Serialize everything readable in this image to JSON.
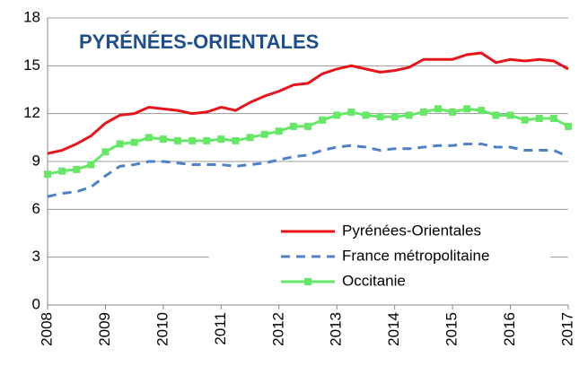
{
  "chart_data": {
    "type": "line",
    "title": "PYRÉNÉES-ORIENTALES",
    "x": [
      2008,
      2008.25,
      2008.5,
      2008.75,
      2009,
      2009.25,
      2009.5,
      2009.75,
      2010,
      2010.25,
      2010.5,
      2010.75,
      2011,
      2011.25,
      2011.5,
      2011.75,
      2012,
      2012.25,
      2012.5,
      2012.75,
      2013,
      2013.25,
      2013.5,
      2013.75,
      2014,
      2014.25,
      2014.5,
      2014.75,
      2015,
      2015.25,
      2015.5,
      2015.75,
      2016,
      2016.25,
      2016.5,
      2016.75,
      2017
    ],
    "series": [
      {
        "name": "Pyrénées-Orientales",
        "color": "#e8141b",
        "style": "solid",
        "marker": false,
        "values": [
          9.5,
          9.7,
          10.1,
          10.6,
          11.4,
          11.9,
          12.0,
          12.4,
          12.3,
          12.2,
          12.0,
          12.1,
          12.4,
          12.2,
          12.7,
          13.1,
          13.4,
          13.8,
          13.9,
          14.5,
          14.8,
          15.0,
          14.8,
          14.6,
          14.7,
          14.9,
          15.4,
          15.4,
          15.4,
          15.7,
          15.8,
          15.2,
          15.4,
          15.3,
          15.4,
          15.3,
          14.8
        ]
      },
      {
        "name": "France métropolitaine",
        "color": "#4f81c7",
        "style": "dashed",
        "marker": false,
        "values": [
          6.8,
          7.0,
          7.1,
          7.4,
          8.1,
          8.7,
          8.8,
          9.0,
          9.0,
          8.9,
          8.8,
          8.8,
          8.8,
          8.7,
          8.8,
          8.9,
          9.1,
          9.3,
          9.4,
          9.7,
          9.9,
          10.0,
          9.9,
          9.7,
          9.8,
          9.8,
          9.9,
          10.0,
          10.0,
          10.1,
          10.1,
          9.9,
          9.9,
          9.7,
          9.7,
          9.7,
          9.3
        ]
      },
      {
        "name": "Occitanie",
        "color": "#66e866",
        "style": "solid",
        "marker": true,
        "values": [
          8.2,
          8.4,
          8.5,
          8.8,
          9.6,
          10.1,
          10.2,
          10.5,
          10.4,
          10.3,
          10.3,
          10.3,
          10.4,
          10.3,
          10.5,
          10.7,
          10.9,
          11.2,
          11.2,
          11.6,
          11.9,
          12.1,
          11.9,
          11.8,
          11.8,
          11.9,
          12.1,
          12.3,
          12.1,
          12.3,
          12.2,
          11.9,
          11.9,
          11.6,
          11.7,
          11.7,
          11.2
        ]
      }
    ],
    "xlim": [
      2008,
      2017
    ],
    "xticks": [
      2008,
      2009,
      2010,
      2011,
      2012,
      2013,
      2014,
      2015,
      2016,
      2017
    ],
    "ylim": [
      0,
      18
    ],
    "yticks": [
      0,
      3,
      6,
      9,
      12,
      15,
      18
    ],
    "grid": true,
    "legend": "lower right"
  }
}
